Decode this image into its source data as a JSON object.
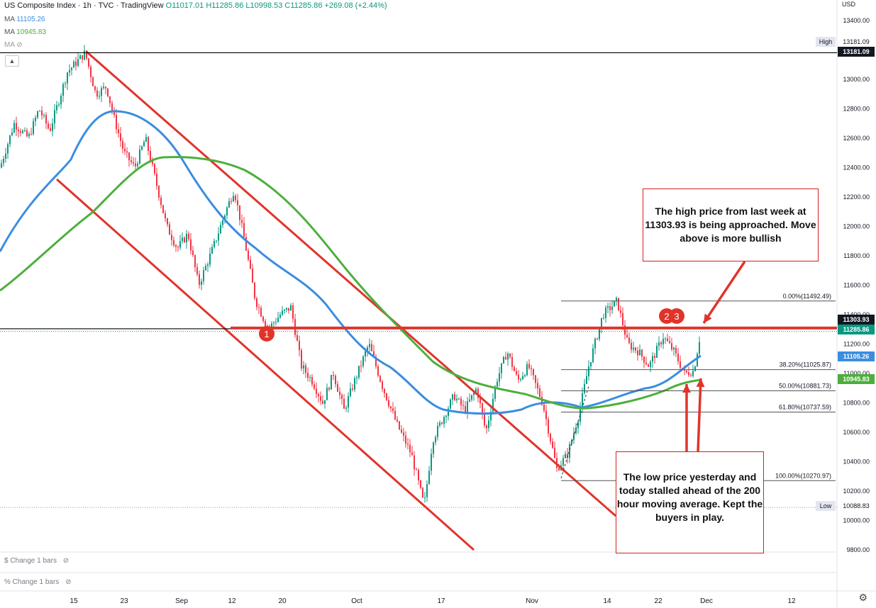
{
  "header": {
    "title": "US Composite Index · 1h · TVC · TradingView",
    "ohlc_text": "O11017.01 H11285.86 L10998.53 C11285.86 +269.08 (+2.44%)",
    "ma1_label": "MA",
    "ma1_value": "11105.26",
    "ma2_label": "MA",
    "ma2_value": "10945.83",
    "ma3_label": "MA",
    "collapse_icon": "chevron-up-icon"
  },
  "currency_label": "USD",
  "colors": {
    "ma_fast": "#3b8de0",
    "ma_slow": "#4caf3c",
    "trend": "#e0342b",
    "price_line": "#000000",
    "candle_up": "#089981",
    "candle_down": "#f23645"
  },
  "panes": {
    "pane1_label": "$ Change 1 bars",
    "pane2_label": "% Change 1 bars",
    "eye_icon": "eye-crossed-icon"
  },
  "annotations": {
    "top_box": "The high price from last week at 11303.93 is being approached. Move above is more bullish",
    "bottom_box": "The low price yesterday and today stalled ahead of the 200 hour moving average. Kept the buyers in play."
  },
  "markers": [
    "1",
    "2",
    "3"
  ],
  "fib_labels": [
    "0.00%(11492.49)",
    "38.20%(11025.87)",
    "50.00%(10881.73)",
    "61.80%(10737.59)",
    "100.00%(10270.97)"
  ],
  "price_badges": [
    {
      "text": "High",
      "value": "13181.09"
    },
    {
      "text": "13181.09"
    },
    {
      "text": "11303.93"
    },
    {
      "text": "11285.86"
    },
    {
      "text": "11105.26"
    },
    {
      "text": "10945.83"
    },
    {
      "text": "Low",
      "value": "10088.83"
    }
  ],
  "chart_data": {
    "type": "candlestick",
    "title": "US Composite Index · 1h · TVC",
    "y_axis_ticks": [
      "13400.00",
      "13200.00",
      "13000.00",
      "12800.00",
      "12600.00",
      "12400.00",
      "12200.00",
      "12000.00",
      "11800.00",
      "11600.00",
      "11400.00",
      "11200.00",
      "11000.00",
      "10800.00",
      "10600.00",
      "10400.00",
      "10200.00",
      "10000.00",
      "9800.00"
    ],
    "y_tick_values": [
      13400,
      13200,
      13000,
      12800,
      12600,
      12400,
      12200,
      12000,
      11800,
      11600,
      11400,
      11200,
      11000,
      10800,
      10600,
      10400,
      10200,
      10000,
      9800
    ],
    "x_axis_ticks": [
      "15",
      "23",
      "Sep",
      "12",
      "20",
      "Oct",
      "17",
      "Nov",
      "14",
      "22",
      "Dec",
      "12"
    ],
    "ylim": [
      9780,
      13460
    ],
    "high": 13181.09,
    "low": 10088.83,
    "key_level": 11303.93,
    "last_close": 11285.86,
    "ma_fast": 11105.26,
    "ma_slow": 10945.83,
    "fib_levels": [
      11492.49,
      11025.87,
      10881.73,
      10737.59,
      10270.97
    ],
    "price_path": [
      [
        "Aug 08",
        12400
      ],
      [
        "Aug 09",
        12700
      ],
      [
        "Aug 11",
        12600
      ],
      [
        "Aug 12",
        12800
      ],
      [
        "Aug 14",
        12650
      ],
      [
        "Aug 15",
        13050
      ],
      [
        "Aug 16",
        13181
      ],
      [
        "Aug 18",
        12900
      ],
      [
        "Aug 19",
        12950
      ],
      [
        "Aug 21",
        12750
      ],
      [
        "Aug 23",
        12500
      ],
      [
        "Aug 25",
        12400
      ],
      [
        "Aug 27",
        12600
      ],
      [
        "Aug 29",
        12300
      ],
      [
        "Aug 31",
        12000
      ],
      [
        "Sep 01",
        11850
      ],
      [
        "Sep 04",
        11950
      ],
      [
        "Sep 06",
        11600
      ],
      [
        "Sep 08",
        11850
      ],
      [
        "Sep 10",
        12100
      ],
      [
        "Sep 12",
        12250
      ],
      [
        "Sep 13",
        11900
      ],
      [
        "Sep 15",
        11500
      ],
      [
        "Sep 17",
        11300
      ],
      [
        "Sep 19",
        11400
      ],
      [
        "Sep 21",
        11450
      ],
      [
        "Sep 23",
        11050
      ],
      [
        "Sep 25",
        10950
      ],
      [
        "Sep 27",
        10800
      ],
      [
        "Sep 29",
        11000
      ],
      [
        "Oct 01",
        10750
      ],
      [
        "Oct 03",
        10950
      ],
      [
        "Oct 05",
        11200
      ],
      [
        "Oct 07",
        10900
      ],
      [
        "Oct 09",
        10650
      ],
      [
        "Oct 11",
        10450
      ],
      [
        "Oct 13",
        10100
      ],
      [
        "Oct 14",
        10550
      ],
      [
        "Oct 16",
        10700
      ],
      [
        "Oct 18",
        10850
      ],
      [
        "Oct 20",
        10750
      ],
      [
        "Oct 22",
        10900
      ],
      [
        "Oct 24",
        10600
      ],
      [
        "Oct 26",
        10950
      ],
      [
        "Oct 28",
        11150
      ],
      [
        "Oct 30",
        10950
      ],
      [
        "Nov 01",
        11050
      ],
      [
        "Nov 03",
        10800
      ],
      [
        "Nov 05",
        10350
      ],
      [
        "Nov 07",
        10450
      ],
      [
        "Nov 09",
        10700
      ],
      [
        "Nov 11",
        11050
      ],
      [
        "Nov 13",
        11400
      ],
      [
        "Nov 15",
        11492
      ],
      [
        "Nov 17",
        11200
      ],
      [
        "Nov 19",
        11150
      ],
      [
        "Nov 21",
        11050
      ],
      [
        "Nov 23",
        11250
      ],
      [
        "Nov 25",
        11150
      ],
      [
        "Nov 27",
        11000
      ],
      [
        "Nov 28",
        11017
      ],
      [
        "Nov 29",
        11285.86
      ]
    ]
  }
}
